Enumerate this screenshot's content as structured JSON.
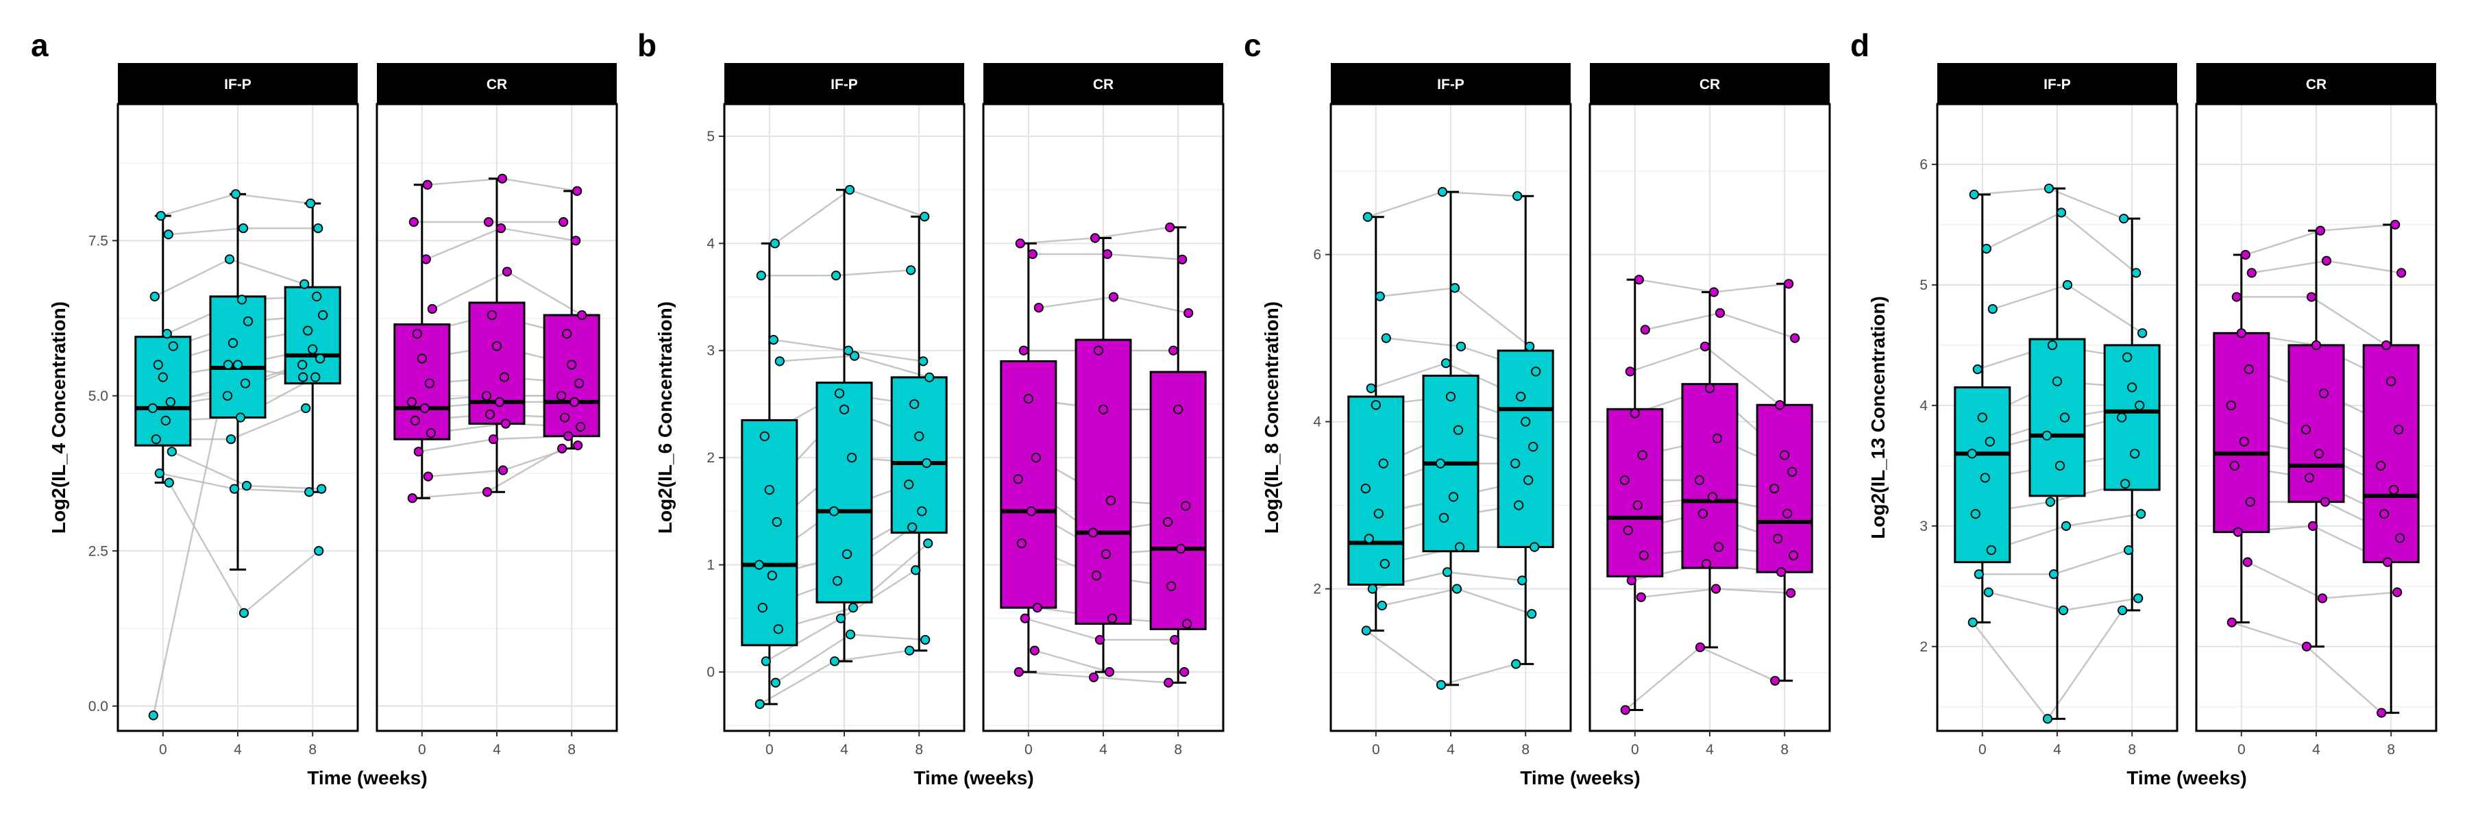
{
  "chart_data": [
    {
      "type": "boxplot",
      "panel_label": "a",
      "ylabel": "Log2(IL_4 Concentration)",
      "xlabel": "Time (weeks)",
      "ylim": [
        -0.4,
        9.7
      ],
      "yticks": [
        0.0,
        2.5,
        5.0,
        7.5
      ],
      "ytick_labels": [
        "0.0",
        "2.5",
        "5.0",
        "7.5"
      ],
      "categories": [
        "0",
        "4",
        "8"
      ],
      "facets": [
        {
          "name": "IF-P",
          "color": "#00CED1",
          "boxes": [
            {
              "x": "0",
              "min": 3.6,
              "q1": 4.2,
              "median": 4.8,
              "q3": 5.95,
              "max": 7.9
            },
            {
              "x": "4",
              "min": 2.2,
              "q1": 4.65,
              "median": 5.45,
              "q3": 6.6,
              "max": 8.25
            },
            {
              "x": "8",
              "min": 3.45,
              "q1": 5.2,
              "median": 5.65,
              "q3": 6.75,
              "max": 8.1
            }
          ],
          "points": [
            [
              -0.15,
              5.5,
              5.3
            ],
            [
              3.6,
              1.5,
              2.5
            ],
            [
              3.75,
              3.5,
              3.45
            ],
            [
              4.1,
              3.55,
              3.5
            ],
            [
              4.3,
              4.3,
              4.8
            ],
            [
              4.6,
              4.65,
              5.3
            ],
            [
              4.8,
              5.0,
              5.5
            ],
            [
              4.9,
              5.2,
              5.6
            ],
            [
              5.3,
              5.5,
              5.75
            ],
            [
              5.5,
              5.85,
              6.05
            ],
            [
              5.8,
              6.2,
              6.3
            ],
            [
              6.0,
              6.55,
              6.6
            ],
            [
              6.6,
              7.2,
              6.8
            ],
            [
              7.6,
              7.7,
              7.7
            ],
            [
              7.9,
              8.25,
              8.1
            ]
          ]
        },
        {
          "name": "CR",
          "color": "#CC00CC",
          "boxes": [
            {
              "x": "0",
              "min": 3.35,
              "q1": 4.3,
              "median": 4.8,
              "q3": 6.15,
              "max": 8.4
            },
            {
              "x": "4",
              "min": 3.45,
              "q1": 4.55,
              "median": 4.9,
              "q3": 6.5,
              "max": 8.5
            },
            {
              "x": "8",
              "min": 4.15,
              "q1": 4.35,
              "median": 4.9,
              "q3": 6.3,
              "max": 8.3
            }
          ],
          "points": [
            [
              3.35,
              3.45,
              4.15
            ],
            [
              3.7,
              3.8,
              4.2
            ],
            [
              4.1,
              4.3,
              4.35
            ],
            [
              4.4,
              4.55,
              4.5
            ],
            [
              4.6,
              4.7,
              4.65
            ],
            [
              4.8,
              4.9,
              4.9
            ],
            [
              4.9,
              5.0,
              5.0
            ],
            [
              5.2,
              5.3,
              5.2
            ],
            [
              5.6,
              5.8,
              5.5
            ],
            [
              6.0,
              6.3,
              6.0
            ],
            [
              6.4,
              7.0,
              6.3
            ],
            [
              7.2,
              7.7,
              7.5
            ],
            [
              7.8,
              7.8,
              7.8
            ],
            [
              8.4,
              8.5,
              8.3
            ]
          ]
        }
      ]
    },
    {
      "type": "boxplot",
      "panel_label": "b",
      "ylabel": "Log2(IL_6 Concentration)",
      "xlabel": "Time (weeks)",
      "ylim": [
        -0.55,
        5.3
      ],
      "yticks": [
        0,
        1,
        2,
        3,
        4,
        5
      ],
      "ytick_labels": [
        "0",
        "1",
        "2",
        "3",
        "4",
        "5"
      ],
      "categories": [
        "0",
        "4",
        "8"
      ],
      "facets": [
        {
          "name": "IF-P",
          "color": "#00CED1",
          "boxes": [
            {
              "x": "0",
              "min": -0.3,
              "q1": 0.25,
              "median": 1.0,
              "q3": 2.35,
              "max": 4.0
            },
            {
              "x": "4",
              "min": 0.1,
              "q1": 0.65,
              "median": 1.5,
              "q3": 2.7,
              "max": 4.5
            },
            {
              "x": "8",
              "min": 0.2,
              "q1": 1.3,
              "median": 1.95,
              "q3": 2.75,
              "max": 4.25
            }
          ],
          "points": [
            [
              -0.3,
              0.1,
              0.2
            ],
            [
              -0.1,
              0.35,
              0.3
            ],
            [
              0.1,
              0.5,
              0.95
            ],
            [
              0.4,
              0.6,
              1.2
            ],
            [
              0.6,
              0.85,
              1.35
            ],
            [
              0.9,
              1.1,
              1.5
            ],
            [
              1.0,
              1.5,
              1.75
            ],
            [
              1.4,
              2.0,
              1.95
            ],
            [
              1.7,
              2.45,
              2.2
            ],
            [
              2.2,
              2.6,
              2.5
            ],
            [
              2.9,
              2.95,
              2.75
            ],
            [
              3.1,
              3.0,
              2.9
            ],
            [
              3.7,
              3.7,
              3.75
            ],
            [
              4.0,
              4.5,
              4.25
            ]
          ]
        },
        {
          "name": "CR",
          "color": "#CC00CC",
          "boxes": [
            {
              "x": "0",
              "min": 0.0,
              "q1": 0.6,
              "median": 1.5,
              "q3": 2.9,
              "max": 4.0
            },
            {
              "x": "4",
              "min": 0.0,
              "q1": 0.45,
              "median": 1.3,
              "q3": 3.1,
              "max": 4.05
            },
            {
              "x": "8",
              "min": -0.1,
              "q1": 0.4,
              "median": 1.15,
              "q3": 2.8,
              "max": 4.15
            }
          ],
          "points": [
            [
              0.0,
              -0.05,
              -0.1
            ],
            [
              0.2,
              0.0,
              0.0
            ],
            [
              0.5,
              0.3,
              0.3
            ],
            [
              0.6,
              0.5,
              0.45
            ],
            [
              1.2,
              0.9,
              0.8
            ],
            [
              1.5,
              1.1,
              1.15
            ],
            [
              1.8,
              1.3,
              1.4
            ],
            [
              2.0,
              1.6,
              1.55
            ],
            [
              2.55,
              2.45,
              2.45
            ],
            [
              3.0,
              3.0,
              3.0
            ],
            [
              3.4,
              3.5,
              3.35
            ],
            [
              3.9,
              3.9,
              3.85
            ],
            [
              4.0,
              4.05,
              4.15
            ]
          ]
        }
      ]
    },
    {
      "type": "boxplot",
      "panel_label": "c",
      "ylabel": "Log2(IL_8 Concentration)",
      "xlabel": "Time (weeks)",
      "ylim": [
        0.3,
        7.8
      ],
      "yticks": [
        2,
        4,
        6
      ],
      "ytick_labels": [
        "2",
        "4",
        "6"
      ],
      "categories": [
        "0",
        "4",
        "8"
      ],
      "facets": [
        {
          "name": "IF-P",
          "color": "#00CED1",
          "boxes": [
            {
              "x": "0",
              "min": 1.5,
              "q1": 2.05,
              "median": 2.55,
              "q3": 4.3,
              "max": 6.45
            },
            {
              "x": "4",
              "min": 0.85,
              "q1": 2.45,
              "median": 3.5,
              "q3": 4.55,
              "max": 6.75
            },
            {
              "x": "8",
              "min": 1.1,
              "q1": 2.5,
              "median": 4.15,
              "q3": 4.85,
              "max": 6.7
            }
          ],
          "points": [
            [
              1.5,
              0.85,
              1.1
            ],
            [
              1.8,
              2.0,
              1.7
            ],
            [
              2.0,
              2.2,
              2.1
            ],
            [
              2.3,
              2.5,
              2.5
            ],
            [
              2.6,
              2.85,
              3.0
            ],
            [
              2.9,
              3.1,
              3.3
            ],
            [
              3.2,
              3.5,
              3.5
            ],
            [
              3.5,
              3.9,
              3.7
            ],
            [
              4.2,
              4.3,
              4.0
            ],
            [
              4.4,
              4.7,
              4.3
            ],
            [
              5.0,
              4.9,
              4.6
            ],
            [
              5.5,
              5.6,
              4.9
            ],
            [
              6.45,
              6.75,
              6.7
            ]
          ]
        },
        {
          "name": "CR",
          "color": "#CC00CC",
          "boxes": [
            {
              "x": "0",
              "min": 0.55,
              "q1": 2.15,
              "median": 2.85,
              "q3": 4.15,
              "max": 5.7
            },
            {
              "x": "4",
              "min": 1.3,
              "q1": 2.25,
              "median": 3.05,
              "q3": 4.45,
              "max": 5.55
            },
            {
              "x": "8",
              "min": 0.9,
              "q1": 2.2,
              "median": 2.8,
              "q3": 4.2,
              "max": 5.65
            }
          ],
          "points": [
            [
              0.55,
              1.3,
              0.9
            ],
            [
              1.9,
              2.0,
              1.95
            ],
            [
              2.1,
              2.3,
              2.2
            ],
            [
              2.4,
              2.5,
              2.4
            ],
            [
              2.7,
              2.9,
              2.6
            ],
            [
              3.0,
              3.1,
              2.9
            ],
            [
              3.3,
              3.3,
              3.2
            ],
            [
              3.6,
              3.8,
              3.4
            ],
            [
              4.1,
              4.4,
              3.6
            ],
            [
              4.6,
              4.9,
              4.2
            ],
            [
              5.1,
              5.3,
              5.0
            ],
            [
              5.7,
              5.55,
              5.65
            ]
          ]
        }
      ]
    },
    {
      "type": "boxplot",
      "panel_label": "d",
      "ylabel": "Log2(IL_13 Concentration)",
      "xlabel": "Time (weeks)",
      "ylim": [
        1.3,
        6.5
      ],
      "yticks": [
        2,
        3,
        4,
        5,
        6
      ],
      "ytick_labels": [
        "2",
        "3",
        "4",
        "5",
        "6"
      ],
      "categories": [
        "0",
        "4",
        "8"
      ],
      "facets": [
        {
          "name": "IF-P",
          "color": "#00CED1",
          "boxes": [
            {
              "x": "0",
              "min": 2.2,
              "q1": 2.7,
              "median": 3.6,
              "q3": 4.15,
              "max": 5.75
            },
            {
              "x": "4",
              "min": 1.4,
              "q1": 3.25,
              "median": 3.75,
              "q3": 4.55,
              "max": 5.8
            },
            {
              "x": "8",
              "min": 2.3,
              "q1": 3.3,
              "median": 3.95,
              "q3": 4.5,
              "max": 5.55
            }
          ],
          "points": [
            [
              2.2,
              1.4,
              2.3
            ],
            [
              2.45,
              2.3,
              2.4
            ],
            [
              2.6,
              2.6,
              2.8
            ],
            [
              2.8,
              3.0,
              3.1
            ],
            [
              3.1,
              3.2,
              3.35
            ],
            [
              3.4,
              3.5,
              3.6
            ],
            [
              3.6,
              3.75,
              3.9
            ],
            [
              3.7,
              3.9,
              4.0
            ],
            [
              3.9,
              4.2,
              4.15
            ],
            [
              4.3,
              4.5,
              4.4
            ],
            [
              4.8,
              5.0,
              4.6
            ],
            [
              5.3,
              5.6,
              5.1
            ],
            [
              5.75,
              5.8,
              5.55
            ]
          ]
        },
        {
          "name": "CR",
          "color": "#CC00CC",
          "boxes": [
            {
              "x": "0",
              "min": 2.2,
              "q1": 2.95,
              "median": 3.6,
              "q3": 4.6,
              "max": 5.25
            },
            {
              "x": "4",
              "min": 2.0,
              "q1": 3.2,
              "median": 3.5,
              "q3": 4.5,
              "max": 5.45
            },
            {
              "x": "8",
              "min": 1.45,
              "q1": 2.7,
              "median": 3.25,
              "q3": 4.5,
              "max": 5.5
            }
          ],
          "points": [
            [
              2.2,
              2.0,
              1.45
            ],
            [
              2.7,
              2.4,
              2.45
            ],
            [
              2.95,
              3.0,
              2.7
            ],
            [
              3.2,
              3.2,
              2.9
            ],
            [
              3.5,
              3.4,
              3.1
            ],
            [
              3.7,
              3.6,
              3.3
            ],
            [
              4.0,
              3.8,
              3.5
            ],
            [
              4.3,
              4.1,
              3.8
            ],
            [
              4.6,
              4.5,
              4.2
            ],
            [
              4.9,
              4.9,
              4.5
            ],
            [
              5.1,
              5.2,
              5.1
            ],
            [
              5.25,
              5.45,
              5.5
            ]
          ]
        }
      ]
    }
  ]
}
